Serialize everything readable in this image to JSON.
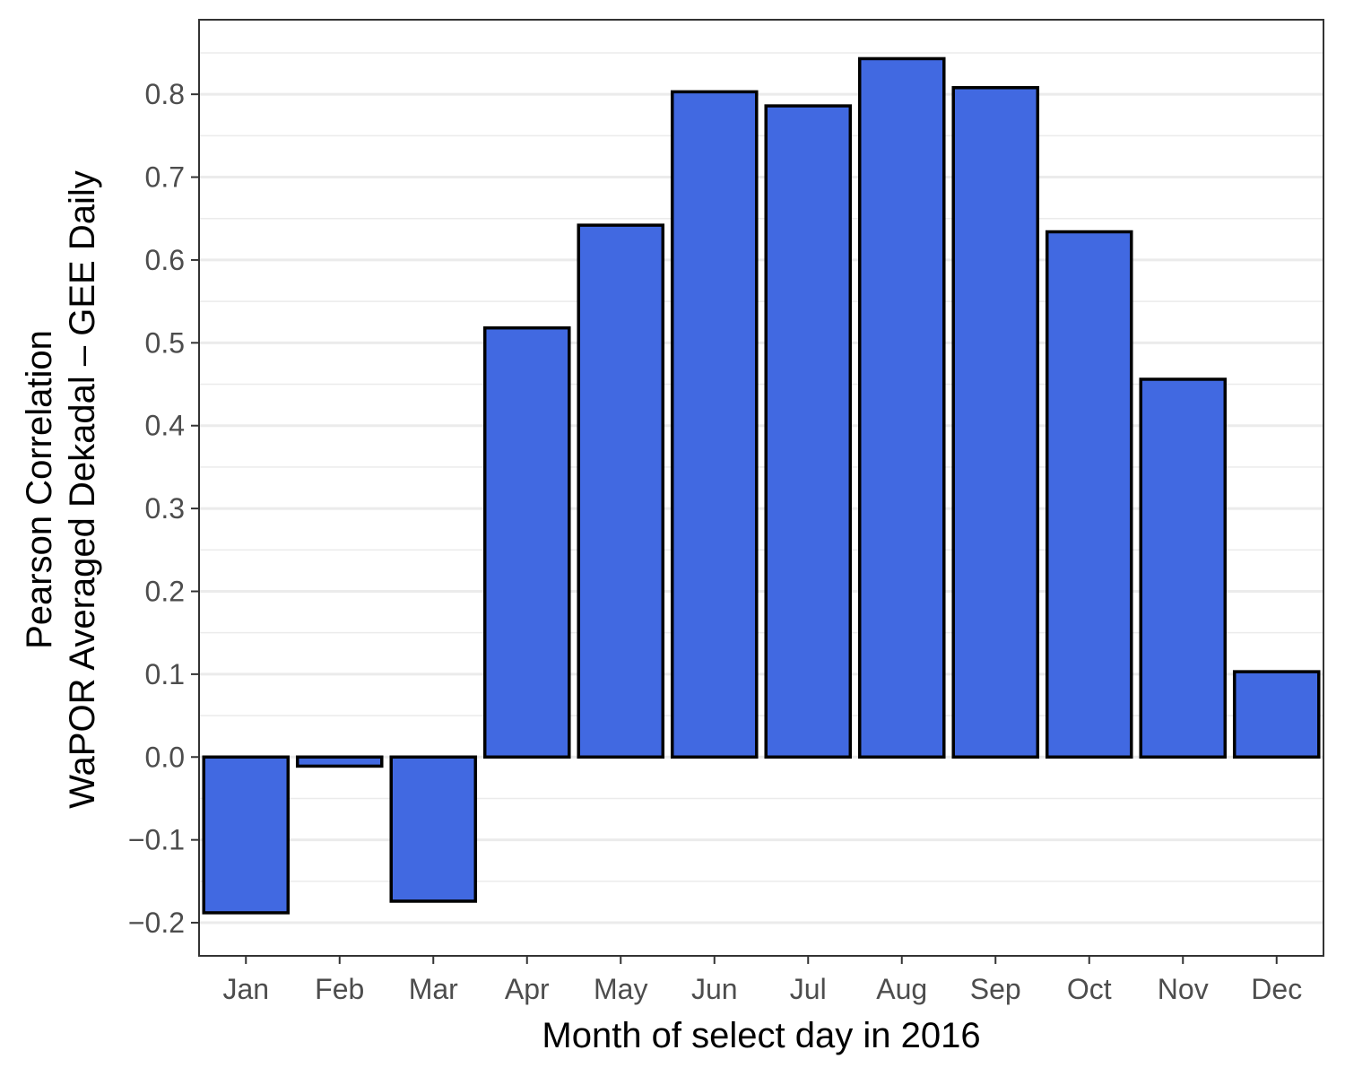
{
  "chart_data": {
    "type": "bar",
    "categories": [
      "Jan",
      "Feb",
      "Mar",
      "Apr",
      "May",
      "Jun",
      "Jul",
      "Aug",
      "Sep",
      "Oct",
      "Nov",
      "Dec"
    ],
    "values": [
      -0.188,
      -0.011,
      -0.174,
      0.518,
      0.642,
      0.803,
      0.786,
      0.843,
      0.808,
      0.634,
      0.456,
      0.103
    ],
    "title": "",
    "xlabel": "Month of select day in 2016",
    "ylabel_lines": [
      "Pearson Correlation",
      "WaPOR Averaged Dekadal – GEE Daily"
    ],
    "ylim": [
      -0.24,
      0.89
    ],
    "yticks": [
      -0.2,
      -0.1,
      0.0,
      0.1,
      0.2,
      0.3,
      0.4,
      0.5,
      0.6,
      0.7,
      0.8
    ],
    "ytick_labels": [
      "−0.2",
      "−0.1",
      "0.0",
      "0.1",
      "0.2",
      "0.3",
      "0.4",
      "0.5",
      "0.6",
      "0.7",
      "0.8"
    ],
    "grid": true,
    "legend": "none",
    "colors": {
      "bar_fill": "#4169e1",
      "bar_outline": "#000000",
      "grid": "#ebebeb",
      "panel_border": "#333333"
    }
  }
}
